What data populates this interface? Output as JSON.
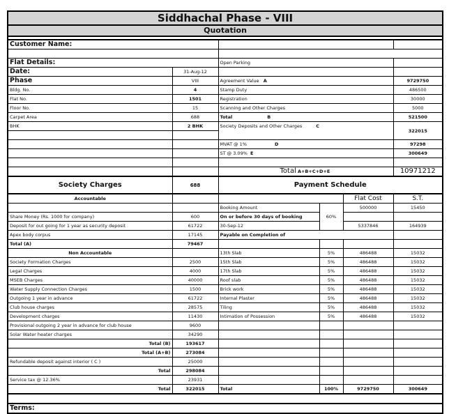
{
  "header": {
    "title": "Siddhachal Phase - VIII",
    "subtitle": "Quotation"
  },
  "details": {
    "customer_name_label": "Customer Name:",
    "flat_details_label": "Flat Details:",
    "open_parking": "Open Parking",
    "date_label": "Date:",
    "date": "31-Aug-12",
    "phase_label": "Phase",
    "phase": "VIII",
    "bldg_label": "Bldg. No.",
    "bldg": "4",
    "flat_label": "Flat No.",
    "flat": "1501",
    "floor_label": "Floor No.",
    "floor": "15",
    "carpet_label": "Carpet Area",
    "carpet": "688",
    "bhk_label": "BHK",
    "bhk": "2 BHK"
  },
  "costs": {
    "agreement_label": "Agreement Value",
    "agreement_tag": "A",
    "agreement": "9729750",
    "stamp_label": "Stamp Duty",
    "stamp": "486500",
    "registration_label": "Registration",
    "registration": "30000",
    "scanning_label": "Scanning and Other Charges",
    "scanning": "5000",
    "total_b_label": "Total",
    "total_b_tag": "B",
    "total_b": "521500",
    "society_label": "Society Deposits and  Other Charges",
    "society_tag": "C",
    "society": "322015",
    "mvat_label": "MVAT @ 1%",
    "mvat_tag": "D",
    "mvat": "97298",
    "st_label": "ST @ 3.09%",
    "st_tag": "E",
    "st": "300649",
    "grand_label": "Total",
    "grand_tag": "A+B+C+D+E",
    "grand": "10971212"
  },
  "society": {
    "title": "Society Charges",
    "area": "688",
    "accountable": "Accountable",
    "rows": [
      {
        "label": "Share Money (Rs. 1000 for company)",
        "value": "600"
      },
      {
        "label": "Deposit for out going  for 1 year as security deposit",
        "value": "61722"
      },
      {
        "label": "Apex body corpus",
        "value": "17145"
      }
    ],
    "total_a_label": "Total (A)",
    "total_a": "79467",
    "non_accountable": "Non Accountable",
    "non_rows": [
      {
        "label": "Society Formation Charges",
        "value": "2500"
      },
      {
        "label": "Legal Charges",
        "value": "4000"
      },
      {
        "label": "MSEB Charges",
        "value": "40000"
      },
      {
        "label": "Water Supply Connection Charges",
        "value": "1500"
      },
      {
        "label": "Outgoing 1 year in advance",
        "value": "61722"
      },
      {
        "label": "Club house charges",
        "value": "28575"
      },
      {
        "label": "Development charges",
        "value": "11430"
      },
      {
        "label": "Provisional outgoing 2 year in advance for club house",
        "value": "9600"
      },
      {
        "label": "Solar Water heater charges",
        "value": "34290"
      }
    ],
    "total_b_label": "Total (B)",
    "total_b": "193617",
    "total_ab_label": "Total (A+B)",
    "total_ab": "273084",
    "refund_label": "Refundable deposit against interior ( C )",
    "refund": "25000",
    "total_label": "Total",
    "total": "298084",
    "service_label": "Service tax @ 12.36%",
    "service": "23931",
    "final_label": "Total",
    "final": "322015"
  },
  "schedule": {
    "title": "Payment Schedule",
    "flat_cost_label": "Flat Cost",
    "st_label": "S.T.",
    "booking_label": "Booking Amount",
    "booking_cost": "500000",
    "booking_st": "15450",
    "booking_pct": "60%",
    "before_label": "On or before 30 days of booking",
    "date_label": "30-Sep-12",
    "date_cost": "5337846",
    "date_st": "164939",
    "completion_label": "Payable on Completion of",
    "slabs": [
      {
        "label": "13th  Slab",
        "pct": "5%",
        "cost": "486488",
        "st": "15032"
      },
      {
        "label": "15th  Slab",
        "pct": "5%",
        "cost": "486488",
        "st": "15032"
      },
      {
        "label": "17th  Slab",
        "pct": "5%",
        "cost": "486488",
        "st": "15032"
      },
      {
        "label": "Roof slab",
        "pct": "5%",
        "cost": "486488",
        "st": "15032"
      },
      {
        "label": "Brick work",
        "pct": "5%",
        "cost": "486488",
        "st": "15032"
      },
      {
        "label": "Internal Plaster",
        "pct": "5%",
        "cost": "486488",
        "st": "15032"
      },
      {
        "label": "Tiling",
        "pct": "5%",
        "cost": "486488",
        "st": "15032"
      },
      {
        "label": "Intimation of Possession",
        "pct": "5%",
        "cost": "486488",
        "st": "15032"
      }
    ],
    "total_label": "Total",
    "total_pct": "100%",
    "total_cost": "9729750",
    "total_st": "300649"
  },
  "terms_label": "Terms:"
}
